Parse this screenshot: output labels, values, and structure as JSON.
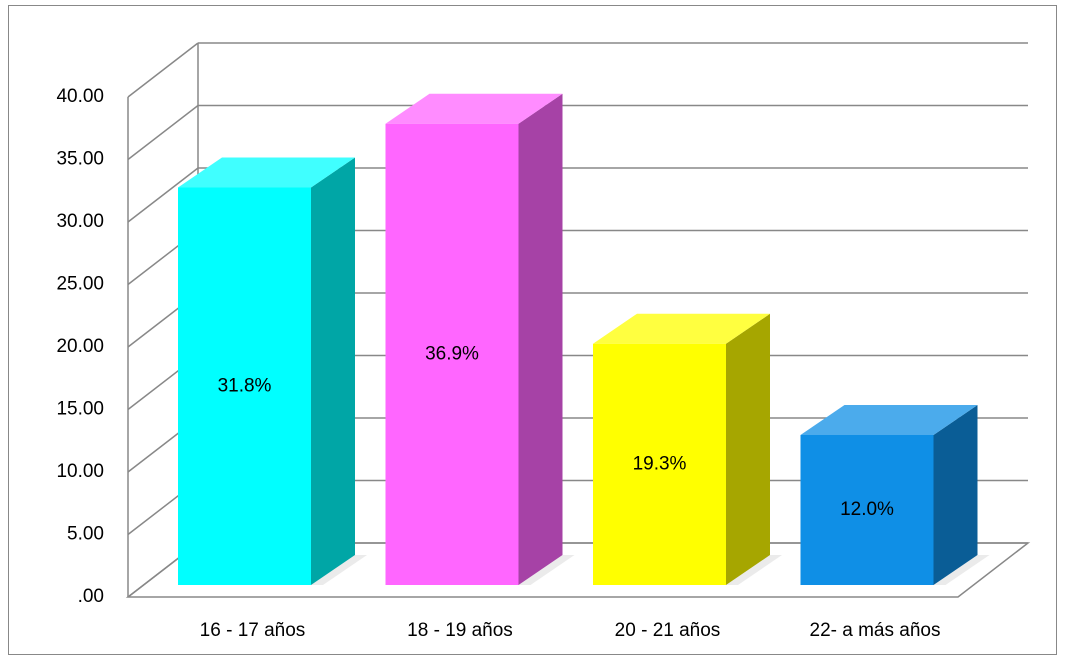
{
  "chart_data": {
    "type": "bar3d",
    "categories": [
      "16 - 17 años",
      "18 - 19 años",
      "20 - 21 años",
      "22- a más años"
    ],
    "values": [
      31.8,
      36.9,
      19.3,
      12.0
    ],
    "value_labels": [
      "31.8%",
      "36.9%",
      "19.3%",
      "12.0%"
    ],
    "colors": [
      "#00ffff",
      "#ff66ff",
      "#ffff00",
      "#0f8fe6"
    ],
    "ylim": [
      0,
      40
    ],
    "yticks": [
      {
        "value": 0,
        "label": ".00"
      },
      {
        "value": 5,
        "label": "5.00"
      },
      {
        "value": 10,
        "label": "10.00"
      },
      {
        "value": 15,
        "label": "15.00"
      },
      {
        "value": 20,
        "label": "20.00"
      },
      {
        "value": 25,
        "label": "25.00"
      },
      {
        "value": 30,
        "label": "30.00"
      },
      {
        "value": 35,
        "label": "35.00"
      },
      {
        "value": 40,
        "label": "40.00"
      }
    ],
    "grid": true
  }
}
